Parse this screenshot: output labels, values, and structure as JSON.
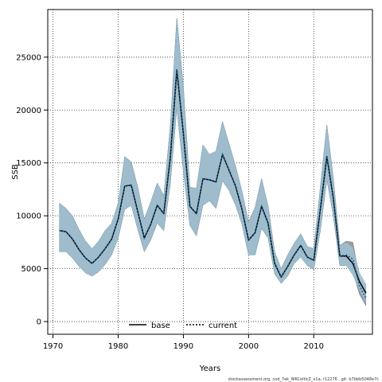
{
  "chart_data": {
    "type": "line",
    "xlabel": "Years",
    "ylabel": "SSB",
    "xlim": [
      1969.2,
      2019.0
    ],
    "ylim": [
      -1200,
      29500
    ],
    "x_ticks": [
      1970,
      1980,
      1990,
      2000,
      2010
    ],
    "y_ticks": [
      0,
      5000,
      10000,
      15000,
      20000,
      25000
    ],
    "grid": true,
    "legend_position": "bottom-center",
    "caption": "stockassessment.org, cod_7ek_WKCelticZ_v1a, r12276 , git: b7bbb5048e7c",
    "colors": {
      "band_base": "#9fbfd0",
      "band_current": "#8a8a8a",
      "line_base": "#000000",
      "line_current": "#000000",
      "grid": "#333333"
    },
    "series": [
      {
        "name": "base",
        "style": "solid",
        "x": [
          1971,
          1972,
          1973,
          1974,
          1975,
          1976,
          1977,
          1978,
          1979,
          1980,
          1981,
          1982,
          1983,
          1984,
          1985,
          1986,
          1987,
          1988,
          1989,
          1990,
          1991,
          1992,
          1993,
          1994,
          1995,
          1996,
          1997,
          1998,
          1999,
          2000,
          2001,
          2002,
          2003,
          2004,
          2005,
          2006,
          2007,
          2008,
          2009,
          2010,
          2011,
          2012,
          2013,
          2014,
          2015,
          2016,
          2017,
          2018
        ],
        "y": [
          8600,
          8500,
          7800,
          6800,
          6000,
          5500,
          6100,
          6900,
          7800,
          9700,
          12800,
          12900,
          10400,
          7900,
          9200,
          11000,
          10200,
          15500,
          23800,
          17800,
          10900,
          10200,
          13500,
          13400,
          13200,
          15800,
          14300,
          12800,
          10600,
          7700,
          8400,
          10900,
          9300,
          5500,
          4200,
          5200,
          6300,
          7200,
          6100,
          5800,
          10600,
          15600,
          11700,
          6200,
          6200,
          5500,
          3800,
          2700
        ],
        "lower": [
          6600,
          6600,
          6000,
          5200,
          4600,
          4300,
          4700,
          5400,
          6300,
          7900,
          10600,
          11000,
          8700,
          6600,
          7700,
          9300,
          8600,
          13000,
          20200,
          14200,
          9100,
          8100,
          11000,
          11400,
          10700,
          13300,
          12400,
          11000,
          9200,
          6300,
          6300,
          8800,
          7900,
          4500,
          3600,
          4300,
          5500,
          6100,
          5300,
          4900,
          8600,
          13400,
          10000,
          5300,
          5300,
          4400,
          3000,
          1700
        ],
        "upper": [
          11200,
          10700,
          10000,
          8700,
          7600,
          6900,
          7600,
          8600,
          9300,
          11200,
          15600,
          15100,
          12700,
          9700,
          11300,
          13100,
          11900,
          18500,
          28700,
          22200,
          12700,
          12600,
          16700,
          15800,
          16100,
          18900,
          16800,
          14700,
          12300,
          9400,
          10800,
          13500,
          10900,
          6600,
          5000,
          6300,
          7400,
          8300,
          7100,
          6900,
          12700,
          18600,
          13600,
          7200,
          7500,
          7000,
          4600,
          3500
        ]
      },
      {
        "name": "current",
        "style": "dotted",
        "x": [
          1971,
          1972,
          1973,
          1974,
          1975,
          1976,
          1977,
          1978,
          1979,
          1980,
          1981,
          1982,
          1983,
          1984,
          1985,
          1986,
          1987,
          1988,
          1989,
          1990,
          1991,
          1992,
          1993,
          1994,
          1995,
          1996,
          1997,
          1998,
          1999,
          2000,
          2001,
          2002,
          2003,
          2004,
          2005,
          2006,
          2007,
          2008,
          2009,
          2010,
          2011,
          2012,
          2013,
          2014,
          2015,
          2016,
          2017,
          2018
        ],
        "y": [
          8600,
          8500,
          7800,
          6800,
          6000,
          5500,
          6100,
          6900,
          7800,
          9700,
          12800,
          12900,
          10400,
          7900,
          9200,
          11000,
          10200,
          15500,
          23800,
          17800,
          10900,
          10200,
          13500,
          13400,
          13200,
          15800,
          14300,
          12800,
          10600,
          7700,
          8400,
          10900,
          9300,
          5500,
          4200,
          5200,
          6300,
          7200,
          6100,
          5800,
          10600,
          15600,
          11700,
          6200,
          6300,
          5900,
          3400,
          2200
        ],
        "lower": [
          6600,
          6600,
          6000,
          5200,
          4600,
          4300,
          4700,
          5400,
          6300,
          7900,
          10600,
          11000,
          8700,
          6600,
          7700,
          9300,
          8600,
          13000,
          20200,
          14200,
          9100,
          8100,
          11000,
          11400,
          10700,
          13300,
          12400,
          11000,
          9200,
          6300,
          6300,
          8800,
          7900,
          4500,
          3600,
          4300,
          5500,
          6100,
          5300,
          4900,
          8600,
          13400,
          10000,
          5300,
          5300,
          4700,
          2600,
          1500
        ],
        "upper": [
          11200,
          10700,
          10000,
          8700,
          7600,
          6900,
          7600,
          8600,
          9300,
          11200,
          15600,
          15100,
          12700,
          9700,
          11300,
          13100,
          11900,
          18500,
          28700,
          22200,
          12700,
          12600,
          16700,
          15800,
          16100,
          18900,
          16800,
          14700,
          12300,
          9400,
          10800,
          13500,
          10900,
          6600,
          5000,
          6300,
          7400,
          8300,
          7100,
          6900,
          12700,
          18600,
          13600,
          7200,
          7600,
          7500,
          4100,
          3000
        ]
      }
    ]
  }
}
